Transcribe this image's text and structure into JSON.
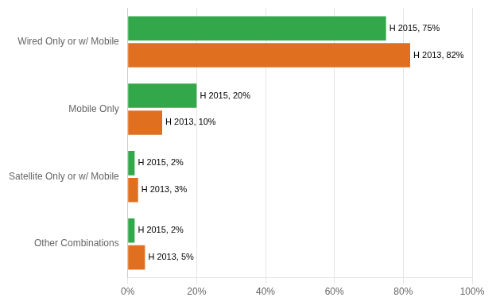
{
  "chart_data": {
    "type": "bar",
    "orientation": "horizontal",
    "categories": [
      "Wired Only or w/ Mobile",
      "Mobile Only",
      "Satellite Only or w/ Mobile",
      "Other Combinations"
    ],
    "series": [
      {
        "color": "#33a84a",
        "values": [
          75,
          20,
          2,
          2
        ],
        "value_labels": [
          "H 2015, 75%",
          "H 2015, 20%",
          "H 2015, 2%",
          "H 2015, 2%"
        ]
      },
      {
        "color": "#e07020",
        "values": [
          82,
          10,
          3,
          5
        ],
        "value_labels": [
          "H 2013, 82%",
          "H 2013, 10%",
          "H 2013, 3%",
          "H 2013, 5%"
        ]
      }
    ],
    "xlim": [
      0,
      100
    ],
    "xticks": [
      {
        "value": 0,
        "label": "0%"
      },
      {
        "value": 20,
        "label": "20%"
      },
      {
        "value": 40,
        "label": "40%"
      },
      {
        "value": 60,
        "label": "60%"
      },
      {
        "value": 80,
        "label": "80%"
      },
      {
        "value": 100,
        "label": "100%"
      }
    ],
    "grid": true,
    "data_labels": true
  }
}
